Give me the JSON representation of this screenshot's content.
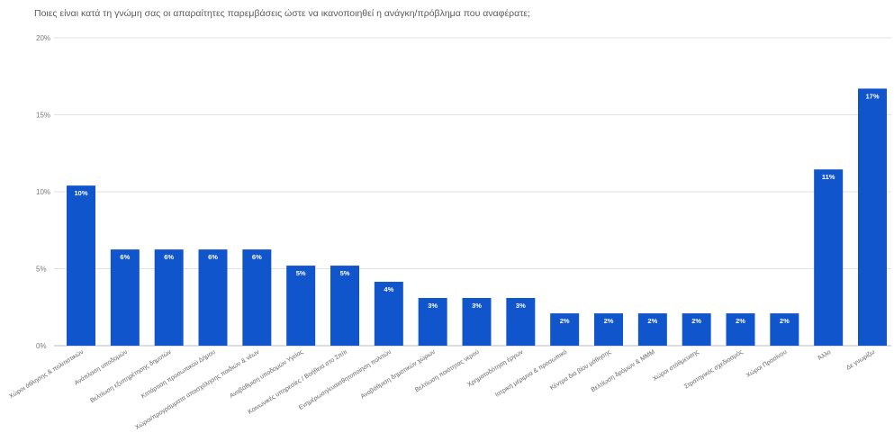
{
  "chart_data": {
    "type": "bar",
    "title": "Ποιες είναι κατά τη γνώμη σας οι απαραίτητες παρεμβάσεις ώστε να ικανοποιηθεί η ανάγκη/πρόβλημα που αναφέρατε;",
    "xlabel": "",
    "ylabel": "",
    "ylim": [
      0,
      20
    ],
    "yticks": [
      "0%",
      "5%",
      "10%",
      "15%",
      "20%"
    ],
    "ytick_values": [
      0,
      5,
      10,
      15,
      20
    ],
    "grid": true,
    "bar_color": "#1155cc",
    "categories": [
      "Χώροι άθλησης & πολιτιστικών",
      "Ανάπλαση υποδομών",
      "Βελτίωση εξυπηρέτησης δημοτών",
      "Κατάρτιση προσωπικού Δήμου",
      "Χώροι/προγράμματα απασχόλησης παιδιών & νέων",
      "Αναβάθμιση υποδομών Υγείας",
      "Κοινωνικές υπηρεσίες / Βοήθεια στο Σπίτι",
      "Ενημέρωση/ευαισθητοποίηση πολιτών",
      "Αναβάθμιση δημοτικών χώρων",
      "Βελτίωση ποιότητας νερού",
      "Χρηματοδότηση έργων",
      "Ιατρική μέριμνα & προσωπικό",
      "Κέντρα δια βίου μάθησης",
      "Βελτίωση δρόμων & ΜΜΜ",
      "Χώροι στάθμευσης",
      "Στρατηγικός σχεδιασμός",
      "Χώροι Πρασίνου",
      "Άλλο",
      "Δε γνωρίζω"
    ],
    "values": [
      10.4,
      6.25,
      6.25,
      6.25,
      6.25,
      5.2,
      5.2,
      4.15,
      3.1,
      3.1,
      3.1,
      2.1,
      2.1,
      2.1,
      2.1,
      2.1,
      2.1,
      11.45,
      16.7
    ],
    "data_labels": [
      "10%",
      "6%",
      "6%",
      "6%",
      "6%",
      "5%",
      "5%",
      "4%",
      "3%",
      "3%",
      "3%",
      "2%",
      "2%",
      "2%",
      "2%",
      "2%",
      "2%",
      "11%",
      "17%"
    ]
  }
}
